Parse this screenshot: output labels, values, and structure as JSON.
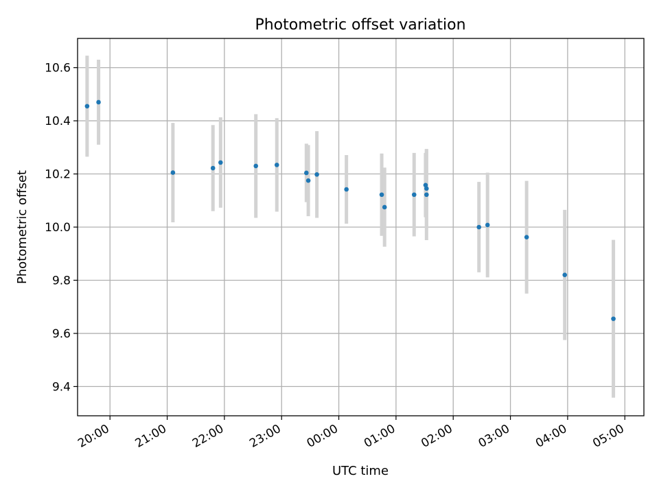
{
  "chart_data": {
    "type": "scatter",
    "title": "Photometric offset variation",
    "xlabel": "UTC time",
    "ylabel": "Photometric offset",
    "x_axis_type": "time",
    "x_tick_labels": [
      "20:00",
      "21:00",
      "22:00",
      "23:00",
      "00:00",
      "01:00",
      "02:00",
      "03:00",
      "04:00",
      "05:00"
    ],
    "x_range": [
      "19:26",
      "05:20"
    ],
    "y_ticks": [
      9.4,
      9.6,
      9.8,
      10.0,
      10.2,
      10.4,
      10.6
    ],
    "ylim": [
      9.29,
      10.71
    ],
    "grid": true,
    "marker_color": "#1f77b4",
    "errorbar_color": "#d3d3d3",
    "points": [
      {
        "x": "19:36",
        "y": 10.455,
        "err": 0.19
      },
      {
        "x": "19:48",
        "y": 10.47,
        "err": 0.16
      },
      {
        "x": "21:06",
        "y": 10.205,
        "err": 0.187
      },
      {
        "x": "21:48",
        "y": 10.222,
        "err": 0.162
      },
      {
        "x": "21:56",
        "y": 10.243,
        "err": 0.17
      },
      {
        "x": "22:33",
        "y": 10.23,
        "err": 0.195
      },
      {
        "x": "22:55",
        "y": 10.234,
        "err": 0.176
      },
      {
        "x": "23:26",
        "y": 10.204,
        "err": 0.11
      },
      {
        "x": "23:28",
        "y": 10.175,
        "err": 0.134
      },
      {
        "x": "23:37",
        "y": 10.198,
        "err": 0.163
      },
      {
        "x": "00:08",
        "y": 10.142,
        "err": 0.129
      },
      {
        "x": "00:45",
        "y": 10.122,
        "err": 0.155
      },
      {
        "x": "00:48",
        "y": 10.075,
        "err": 0.149
      },
      {
        "x": "01:19",
        "y": 10.122,
        "err": 0.157
      },
      {
        "x": "01:31",
        "y": 10.158,
        "err": 0.121
      },
      {
        "x": "01:32",
        "y": 10.145,
        "err": 0.149
      },
      {
        "x": "01:32",
        "y": 10.122,
        "err": 0.171
      },
      {
        "x": "02:27",
        "y": 10.0,
        "err": 0.17
      },
      {
        "x": "02:36",
        "y": 10.008,
        "err": 0.197
      },
      {
        "x": "03:17",
        "y": 9.962,
        "err": 0.212
      },
      {
        "x": "03:57",
        "y": 9.82,
        "err": 0.245
      },
      {
        "x": "04:48",
        "y": 9.655,
        "err": 0.297
      }
    ]
  }
}
